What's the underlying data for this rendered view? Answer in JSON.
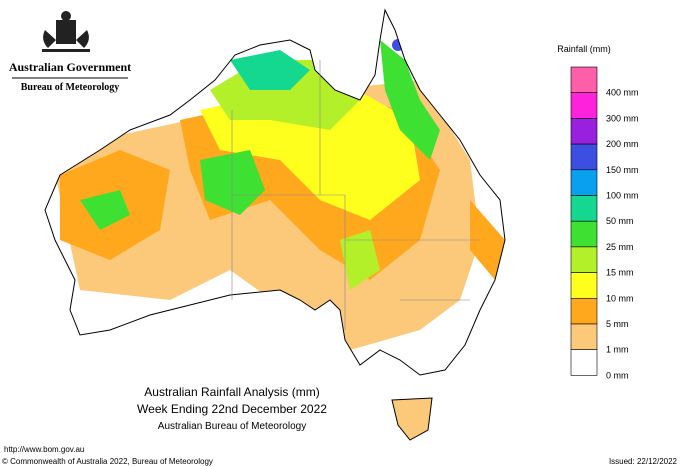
{
  "header": {
    "government": "Australian Government",
    "agency": "Bureau of Meteorology"
  },
  "title": {
    "line1": "Australian Rainfall Analysis (mm)",
    "line2": "Week Ending 22nd December 2022",
    "line3": "Australian Bureau of Meteorology"
  },
  "legend": {
    "title": "Rainfall (mm)",
    "items": [
      {
        "label": "400 mm",
        "color": "#ff5fa8"
      },
      {
        "label": "300 mm",
        "color": "#ff22dd"
      },
      {
        "label": "200 mm",
        "color": "#9a20e0"
      },
      {
        "label": "150 mm",
        "color": "#3c4fe0"
      },
      {
        "label": "100 mm",
        "color": "#0aa0f0"
      },
      {
        "label": "50 mm",
        "color": "#14d890"
      },
      {
        "label": "25 mm",
        "color": "#3ee032"
      },
      {
        "label": "15 mm",
        "color": "#b4f02a"
      },
      {
        "label": "10 mm",
        "color": "#ffff1e"
      },
      {
        "label": "5 mm",
        "color": "#ffa81e"
      },
      {
        "label": "1 mm",
        "color": "#fcc87a"
      },
      {
        "label": "0 mm",
        "color": "#ffffff"
      }
    ]
  },
  "footer": {
    "url": "http://www.bom.gov.au",
    "copyright": "© Commonwealth of Australia 2022, Bureau of Meteorology",
    "issued": "Issued: 22/12/2022"
  }
}
